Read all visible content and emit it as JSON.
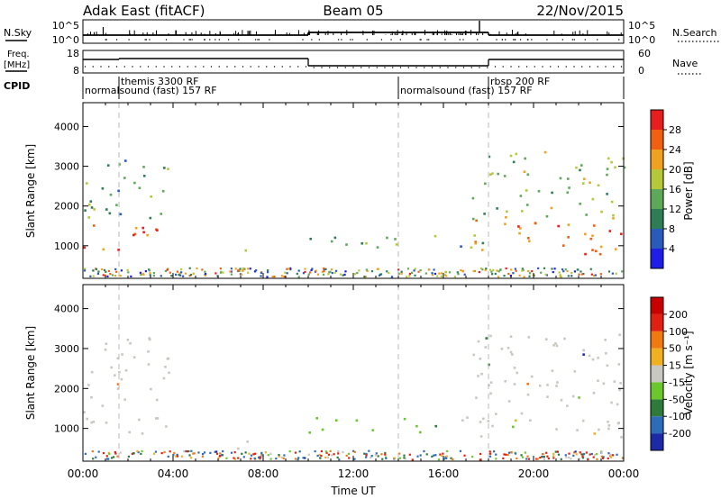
{
  "header": {
    "site": "Adak East (fitACF)",
    "beam": "Beam 05",
    "date": "22/Nov/2015"
  },
  "panels": {
    "nsky": {
      "label": "N.Sky",
      "ticks": [
        "10^5",
        "10^0"
      ],
      "right_label": "N.Search",
      "right_ticks": [
        "10^5",
        "10^0"
      ]
    },
    "freq": {
      "label_line1": "Freq.",
      "label_line2": "[MHz]",
      "ticks": [
        "18",
        "8"
      ],
      "right_label": "Nave",
      "right_ticks": [
        "60",
        "0"
      ]
    },
    "cpid": {
      "label": "CPID",
      "segments": [
        {
          "name": "normalsound (fast) 157 RF",
          "start_h": 0.0,
          "end_h": 14.0
        },
        {
          "name": "themis 3300 RF",
          "start_h": 1.6,
          "end_h": 3.0
        },
        {
          "name": "normalsound (fast) 157 RF",
          "start_h": 14.0,
          "end_h": 18.0
        },
        {
          "name": "rbsp 200 RF",
          "start_h": 18.0,
          "end_h": 24.0
        }
      ]
    }
  },
  "chart_data": [
    {
      "type": "heatmap",
      "name": "Power",
      "ylabel": "Slant Range [km]",
      "xlabel": "Time UT",
      "xlim_hours": [
        0,
        24
      ],
      "ylim": [
        180,
        4600
      ],
      "yticks": [
        "1000",
        "2000",
        "3000",
        "4000"
      ],
      "xticks": [
        "00:00",
        "04:00",
        "08:00",
        "12:00",
        "16:00",
        "20:00",
        "00:00"
      ],
      "colorbar": {
        "label": "Power [dB]",
        "ticks": [
          "4",
          "8",
          "12",
          "16",
          "20",
          "24",
          "28"
        ]
      },
      "dashed_lines_hours": [
        1.6,
        14.0,
        18.0
      ],
      "echo_regions": [
        {
          "t0": 0.0,
          "t1": 3.3,
          "r0": 900,
          "r1": 1700,
          "level_db": 26
        },
        {
          "t0": 0.0,
          "t1": 3.8,
          "r0": 1700,
          "r1": 3300,
          "level_db": 13
        },
        {
          "t0": 6.8,
          "t1": 7.3,
          "r0": 300,
          "r1": 1000,
          "level_db": 20
        },
        {
          "t0": 10.0,
          "t1": 18.0,
          "r0": 900,
          "r1": 1300,
          "level_db": 13
        },
        {
          "t0": 17.2,
          "t1": 24.0,
          "r0": 800,
          "r1": 1700,
          "level_db": 26
        },
        {
          "t0": 17.2,
          "t1": 24.0,
          "r0": 1700,
          "r1": 3400,
          "level_db": 15
        }
      ]
    },
    {
      "type": "heatmap",
      "name": "Velocity",
      "ylabel": "Slant Range [km]",
      "xlabel": "Time UT",
      "xlim_hours": [
        0,
        24
      ],
      "ylim": [
        180,
        4600
      ],
      "yticks": [
        "1000",
        "2000",
        "3000",
        "4000"
      ],
      "xticks": [
        "00:00",
        "04:00",
        "08:00",
        "12:00",
        "16:00",
        "20:00",
        "00:00"
      ],
      "colorbar": {
        "label": "Velocity [m s⁻¹]",
        "ticks": [
          "200",
          "100",
          "50",
          "15",
          "-15",
          "-50",
          "-100",
          "-200"
        ]
      },
      "dashed_lines_hours": [
        1.6,
        14.0,
        18.0
      ],
      "echo_regions": [
        {
          "t0": 0.0,
          "t1": 3.8,
          "r0": 900,
          "r1": 3300,
          "velocity": 0
        },
        {
          "t0": 6.8,
          "t1": 7.3,
          "r0": 300,
          "r1": 1000,
          "velocity": 0
        },
        {
          "t0": 10.0,
          "t1": 15.0,
          "r0": 900,
          "r1": 1300,
          "velocity": 30
        },
        {
          "t0": 15.0,
          "t1": 18.0,
          "r0": 900,
          "r1": 1300,
          "velocity": 0
        },
        {
          "t0": 17.2,
          "t1": 24.0,
          "r0": 800,
          "r1": 3400,
          "velocity": 0
        }
      ]
    }
  ],
  "colors": {
    "power_scale": [
      "#1e1ee6",
      "#2a5bb8",
      "#2f7d55",
      "#5fa85a",
      "#b4c83a",
      "#f0a11f",
      "#f06010",
      "#e61e1e"
    ],
    "velocity_scale": [
      "#1c2aa8",
      "#2d6cb8",
      "#2d7a3a",
      "#6ac82d",
      "#c8c8c0",
      "#f0b020",
      "#f07a10",
      "#e02010",
      "#c80000"
    ]
  }
}
